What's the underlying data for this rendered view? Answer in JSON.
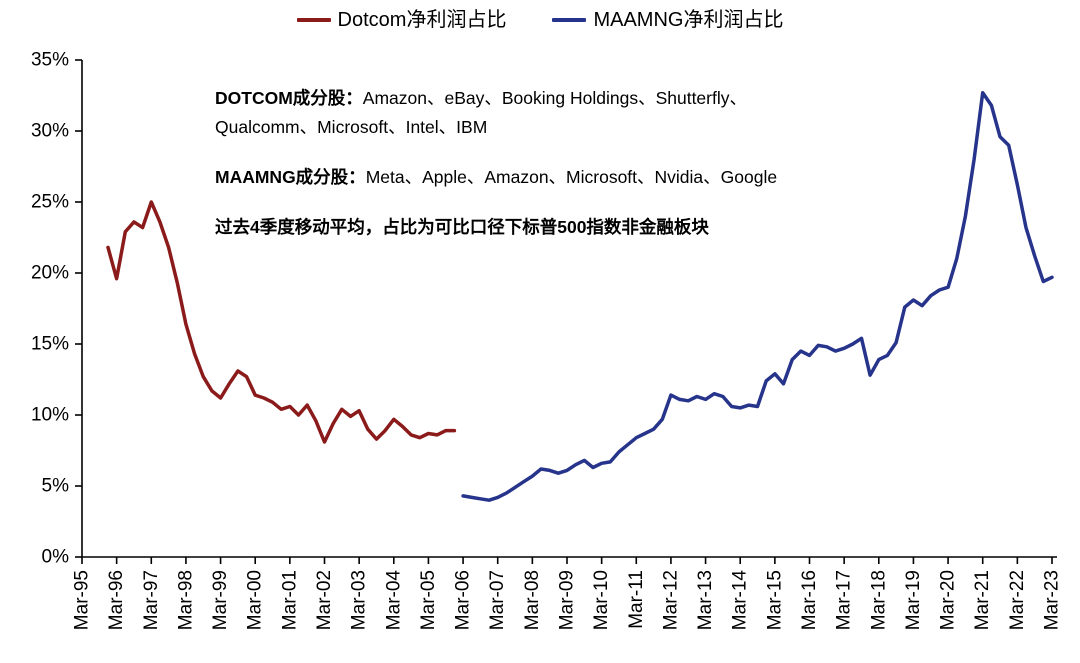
{
  "legend": {
    "items": [
      {
        "label": "Dotcom净利润占比",
        "color": "#8B1A1A"
      },
      {
        "label": "MAAMNG净利润占比",
        "color": "#27348B"
      }
    ]
  },
  "notes": {
    "dotcom_prefix": "DOTCOM成分股：",
    "dotcom_list": "Amazon、eBay、Booking Holdings、Shutterfly、Qualcomm、Microsoft、Intel、IBM",
    "maamng_prefix": "MAAMNG成分股：",
    "maamng_list": "Meta、Apple、Amazon、Microsoft、Nvidia、Google",
    "method": "过去4季度移动平均，占比为可比口径下标普500指数非金融板块"
  },
  "chart_data": {
    "type": "line",
    "title": "",
    "xlabel": "",
    "ylabel": "",
    "grid": false,
    "legend_position": "top-center",
    "x_axis": {
      "unit": "quarter",
      "start": "Mar-95",
      "end": "Mar-23",
      "total_quarters": 112,
      "tick_every_quarters": 4,
      "tick_labels": [
        "Mar-95",
        "Mar-96",
        "Mar-97",
        "Mar-98",
        "Mar-99",
        "Mar-00",
        "Mar-01",
        "Mar-02",
        "Mar-03",
        "Mar-04",
        "Mar-05",
        "Mar-06",
        "Mar-07",
        "Mar-08",
        "Mar-09",
        "Mar-10",
        "Mar-11",
        "Mar-12",
        "Mar-13",
        "Mar-14",
        "Mar-15",
        "Mar-16",
        "Mar-17",
        "Mar-18",
        "Mar-19",
        "Mar-20",
        "Mar-21",
        "Mar-22",
        "Mar-23"
      ]
    },
    "y_axis": {
      "min": 0,
      "max": 35,
      "tick_values": [
        0,
        5,
        10,
        15,
        20,
        25,
        30,
        35
      ],
      "tick_labels": [
        "0%",
        "5%",
        "10%",
        "15%",
        "20%",
        "25%",
        "30%",
        "35%"
      ]
    },
    "series": [
      {
        "name": "Dotcom净利润占比",
        "color": "#8B1A1A",
        "start_label": "Dec-95",
        "start_quarter_index": 3,
        "values_percent": [
          21.8,
          19.6,
          22.9,
          23.6,
          23.2,
          25.0,
          23.6,
          21.8,
          19.3,
          16.4,
          14.3,
          12.7,
          11.7,
          11.2,
          12.2,
          13.1,
          12.7,
          11.4,
          11.2,
          10.9,
          10.4,
          10.6,
          10.0,
          10.7,
          9.6,
          8.1,
          9.4,
          10.4,
          9.9,
          10.3,
          9.0,
          8.3,
          8.9,
          9.7,
          9.2,
          8.6,
          8.4,
          8.7,
          8.6,
          8.9,
          8.9
        ]
      },
      {
        "name": "MAAMNG净利润占比",
        "color": "#27348B",
        "start_label": "Mar-06",
        "start_quarter_index": 44,
        "values_percent": [
          4.3,
          4.2,
          4.1,
          4.0,
          4.2,
          4.5,
          4.9,
          5.3,
          5.7,
          6.2,
          6.1,
          5.9,
          6.1,
          6.5,
          6.8,
          6.3,
          6.6,
          6.7,
          7.4,
          7.9,
          8.4,
          8.7,
          9.0,
          9.7,
          11.4,
          11.1,
          11.0,
          11.3,
          11.1,
          11.5,
          11.3,
          10.6,
          10.5,
          10.7,
          10.6,
          12.4,
          12.9,
          12.2,
          13.9,
          14.5,
          14.2,
          14.9,
          14.8,
          14.5,
          14.7,
          15.0,
          15.4,
          12.8,
          13.9,
          14.2,
          15.1,
          17.6,
          18.1,
          17.7,
          18.4,
          18.8,
          19.0,
          21.0,
          24.0,
          28.0,
          32.7,
          31.8,
          29.6,
          29.0,
          26.2,
          23.2,
          21.2,
          19.4,
          19.7
        ]
      }
    ]
  }
}
